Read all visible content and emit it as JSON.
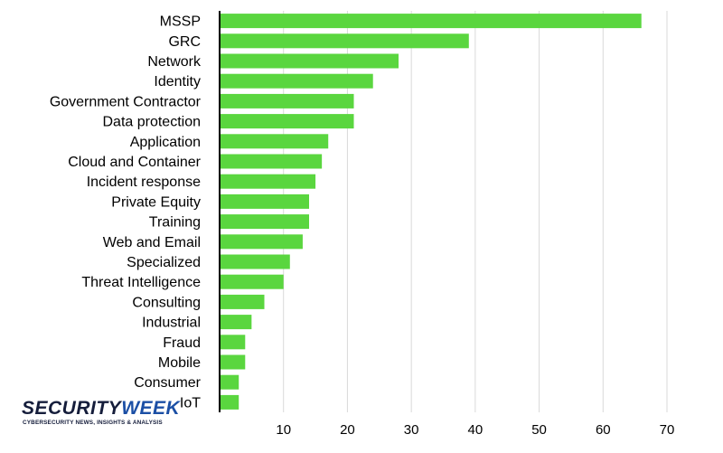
{
  "chart_data": {
    "type": "bar",
    "orientation": "horizontal",
    "categories": [
      "MSSP",
      "GRC",
      "Network",
      "Identity",
      "Government Contractor",
      "Data protection",
      "Application",
      "Cloud and Container",
      "Incident response",
      "Private Equity",
      "Training",
      "Web and Email",
      "Specialized",
      "Threat Intelligence",
      "Consulting",
      "Industrial",
      "Fraud",
      "Mobile",
      "Consumer",
      "IoT"
    ],
    "values": [
      66,
      39,
      28,
      24,
      21,
      21,
      17,
      16,
      15,
      14,
      14,
      13,
      11,
      10,
      7,
      5,
      4,
      4,
      3,
      3
    ],
    "xlim": [
      0,
      70
    ],
    "xticks": [
      10,
      20,
      30,
      40,
      50,
      60,
      70
    ],
    "title": "",
    "xlabel": "",
    "ylabel": "",
    "grid": true,
    "bar_color": "#5ad63f"
  },
  "logo": {
    "brand_left": "SECURITY",
    "brand_right": "WEEK",
    "tagline": "CYBERSECURITY NEWS, INSIGHTS & ANALYSIS"
  }
}
